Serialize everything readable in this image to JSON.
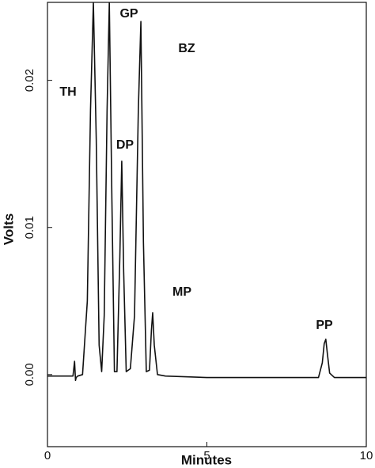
{
  "chart_data": {
    "type": "line",
    "xlabel": "Minutes",
    "ylabel": "Volts",
    "annotations": [
      "TH",
      "GP",
      "BZ",
      "DP",
      "MP",
      "PP"
    ],
    "x": [
      0,
      0.8,
      0.85,
      0.88,
      0.9,
      0.95,
      1.1,
      1.25,
      1.35,
      1.44,
      1.53,
      1.62,
      1.7,
      1.78,
      1.87,
      1.94,
      2.02,
      2.1,
      2.18,
      2.27,
      2.33,
      2.39,
      2.47,
      2.6,
      2.73,
      2.85,
      2.93,
      3.01,
      3.1,
      3.2,
      3.26,
      3.3,
      3.35,
      3.45,
      3.7,
      5,
      7,
      8.5,
      8.62,
      8.68,
      8.73,
      8.78,
      8.85,
      9,
      10
    ],
    "values": [
      -0.0001,
      -0.0001,
      0.0009,
      -0.0004,
      -0.0002,
      -0.0001,
      0,
      0.005,
      0.018,
      0.0253,
      0.016,
      0.002,
      0.0002,
      0.004,
      0.018,
      0.0253,
      0.012,
      0.0002,
      0.0002,
      0.008,
      0.0145,
      0.007,
      0.0002,
      0.0004,
      0.004,
      0.018,
      0.024,
      0.009,
      0.0002,
      0.0003,
      0.003,
      0.0042,
      0.002,
      0,
      -0.0001,
      -0.0002,
      -0.0002,
      -0.0002,
      0.0008,
      0.0021,
      0.0024,
      0.0014,
      0.0001,
      -0.0002,
      -0.0002
    ],
    "color": "#111111",
    "xlim": [
      0,
      10
    ],
    "xticks": [
      0,
      5,
      10
    ],
    "ylim": [
      -0.0049,
      0.0253
    ],
    "yticks": [
      {
        "value": 0,
        "label": "0.00"
      },
      0.01,
      0.02
    ],
    "grid": false
  }
}
